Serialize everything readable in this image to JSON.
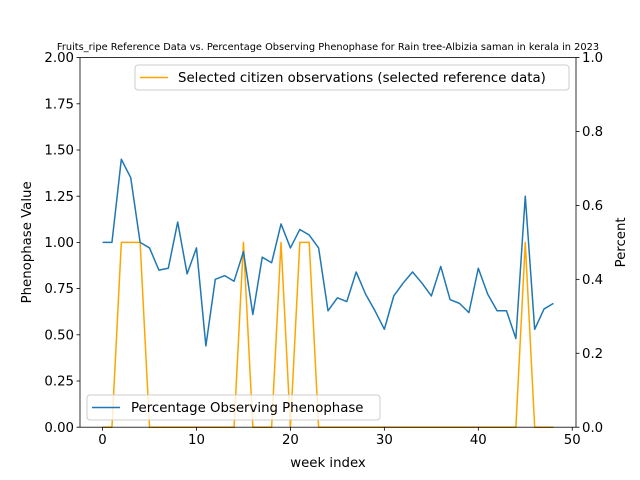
{
  "chart_data": {
    "type": "line",
    "title": "Fruits_ripe Reference Data vs. Percentage Observing Phenophase for Rain tree-Albizia saman in kerala in 2023",
    "xlabel": "week index",
    "ylabel_left": "Phenophase Value",
    "ylabel_right": "Percent",
    "xlim": [
      -2.4,
      50.4
    ],
    "ylim_left": [
      0,
      2.0
    ],
    "ylim_right": [
      0,
      1.0
    ],
    "x_ticks": [
      "0",
      "10",
      "20",
      "30",
      "40",
      "50"
    ],
    "y_left_ticks": [
      "0.00",
      "0.25",
      "0.50",
      "0.75",
      "1.00",
      "1.25",
      "1.50",
      "1.75",
      "2.00"
    ],
    "y_right_ticks": [
      "0.0",
      "0.2",
      "0.4",
      "0.6",
      "0.8",
      "1.0"
    ],
    "legend_left": {
      "label": "Percentage Observing Phenophase",
      "placement": "lower-left"
    },
    "legend_right": {
      "label": "Selected citizen observations (selected reference data)",
      "placement": "top-right"
    },
    "series": [
      {
        "name": "Percentage Observing Phenophase",
        "axis": "left",
        "color": "#1f77b4",
        "x": [
          0,
          1,
          2,
          3,
          4,
          5,
          6,
          7,
          8,
          9,
          10,
          11,
          12,
          13,
          14,
          15,
          16,
          17,
          18,
          19,
          20,
          21,
          22,
          23,
          24,
          25,
          26,
          27,
          28,
          29,
          30,
          31,
          32,
          33,
          34,
          35,
          36,
          37,
          38,
          39,
          40,
          41,
          42,
          43,
          44,
          45,
          46,
          47,
          48
        ],
        "values": [
          1.0,
          1.0,
          1.45,
          1.35,
          1.0,
          0.97,
          0.85,
          0.86,
          1.11,
          0.83,
          0.97,
          0.44,
          0.8,
          0.82,
          0.79,
          0.95,
          0.61,
          0.92,
          0.89,
          1.1,
          0.97,
          1.07,
          1.04,
          0.97,
          0.63,
          0.7,
          0.68,
          0.84,
          0.72,
          0.63,
          0.53,
          0.71,
          0.78,
          0.84,
          0.78,
          0.71,
          0.87,
          0.69,
          0.67,
          0.62,
          0.86,
          0.72,
          0.63,
          0.63,
          0.48,
          1.25,
          0.53,
          0.64,
          0.67
        ]
      },
      {
        "name": "Selected citizen observations (selected reference data)",
        "axis": "right",
        "color": "#ffa500",
        "x": [
          0,
          1,
          2,
          3,
          4,
          5,
          6,
          7,
          8,
          9,
          10,
          11,
          12,
          13,
          14,
          15,
          16,
          17,
          18,
          19,
          20,
          21,
          22,
          23,
          24,
          25,
          26,
          27,
          28,
          29,
          30,
          31,
          32,
          33,
          34,
          35,
          36,
          37,
          38,
          39,
          40,
          41,
          42,
          43,
          44,
          45,
          46,
          47,
          48
        ],
        "values": [
          0,
          0,
          0.5,
          0.5,
          0.5,
          0,
          0,
          0,
          0,
          0,
          0,
          0,
          0,
          0,
          0,
          0.5,
          0,
          0,
          0,
          0.5,
          0,
          0.5,
          0.5,
          0,
          0,
          0,
          0,
          0,
          0,
          0,
          0,
          0,
          0,
          0,
          0,
          0,
          0,
          0,
          0,
          0,
          0,
          0,
          0,
          0,
          0,
          0.5,
          0,
          0,
          0
        ]
      }
    ]
  }
}
